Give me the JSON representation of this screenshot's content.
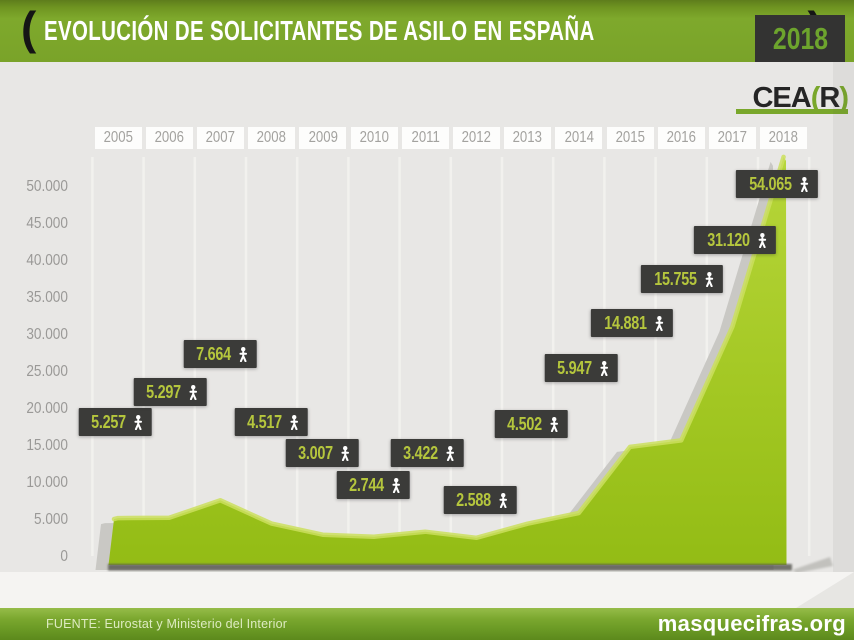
{
  "header": {
    "bracket_open": "(",
    "title": "EVOLUCIÓN DE SOLICITANTES DE ASILO EN ESPAÑA",
    "bracket_close": ")",
    "year_badge": "2018"
  },
  "logo": {
    "name": "CEA",
    "paren_open": "(",
    "letter": "R",
    "paren_close": ")"
  },
  "footer": {
    "source": "FUENTE: Eurostat y Ministerio del Interior",
    "website": "masquecifras.org"
  },
  "colors": {
    "header_green": "#7aa329",
    "footer_green": "#6b9a25",
    "area_green": "#a2c722",
    "area_highlight": "#cbdf5e",
    "label_box": "#3b3b39",
    "label_text": "#b5c63d",
    "badge_text": "#6da42d",
    "logo_paren": "#79a72b",
    "axis_text": "#9a9997",
    "year_text": "#a3a29f",
    "background": "#e8e7e5"
  },
  "chart_data": {
    "type": "area",
    "title": "EVOLUCIÓN DE SOLICITANTES DE ASILO EN ESPAÑA",
    "categories": [
      "2005",
      "2006",
      "2007",
      "2008",
      "2009",
      "2010",
      "2011",
      "2012",
      "2013",
      "2014",
      "2015",
      "2016",
      "2017",
      "2018"
    ],
    "values": [
      5257,
      5297,
      7664,
      4517,
      3007,
      2744,
      3422,
      2588,
      4502,
      5947,
      14881,
      15755,
      31120,
      54065
    ],
    "point_labels": [
      "5.257",
      "5.297",
      "7.664",
      "4.517",
      "3.007",
      "2.744",
      "3.422",
      "2.588",
      "4.502",
      "5.947",
      "14.881",
      "15.755",
      "31.120",
      "54.065"
    ],
    "xlabel": "",
    "ylabel": "",
    "y_ticks": [
      "0",
      "5.000",
      "10.000",
      "15.000",
      "20.000",
      "25.000",
      "30.000",
      "35.000",
      "40.000",
      "45.000",
      "50.000"
    ],
    "y_tick_values": [
      0,
      5000,
      10000,
      15000,
      20000,
      25000,
      30000,
      35000,
      40000,
      45000,
      50000
    ],
    "ylim": [
      0,
      55000
    ],
    "grid": "vertical",
    "legend": "none",
    "source": "FUENTE: Eurostat y Ministerio del Interior"
  }
}
